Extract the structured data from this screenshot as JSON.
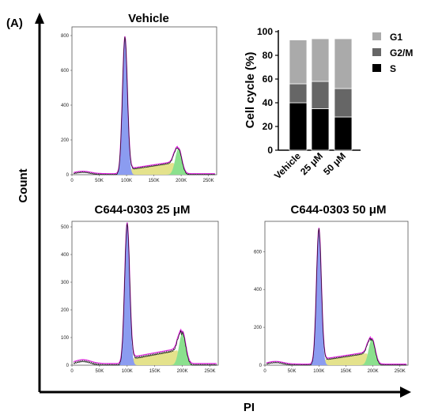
{
  "figure": {
    "panel_label": "(A)",
    "x_axis_label": "PI",
    "y_axis_label": "Count"
  },
  "chart_data": [
    {
      "type": "area",
      "title": "Vehicle",
      "x_ticks": [
        "0",
        "50K",
        "100K",
        "150K",
        "200K",
        "250K"
      ],
      "y_ticks": [
        "0",
        "200",
        "400",
        "600",
        "800"
      ],
      "xlim": [
        0,
        265000
      ],
      "ylim": [
        0,
        850
      ],
      "g1_peak": {
        "x": 97000,
        "count": 790
      },
      "g2m_peak": {
        "x": 195000,
        "count": 190
      }
    },
    {
      "type": "bar",
      "stacked": true,
      "ylabel": "Cell cycle (%)",
      "ylim": [
        0,
        100
      ],
      "y_ticks": [
        "0",
        "20",
        "40",
        "60",
        "80",
        "100"
      ],
      "categories": [
        "Vehicle",
        "25 μM",
        "50 μM"
      ],
      "series": [
        {
          "name": "S",
          "values": [
            40,
            35,
            28
          ],
          "color": "#000000"
        },
        {
          "name": "G2/M",
          "values": [
            16,
            23,
            24
          ],
          "color": "#666666"
        },
        {
          "name": "G1",
          "values": [
            37,
            36,
            42
          ],
          "color": "#aaaaaa"
        }
      ],
      "legend_order": [
        "G1",
        "G2/M",
        "S"
      ],
      "legend": "right"
    },
    {
      "type": "area",
      "title": "C644-0303 25 μM",
      "x_ticks": [
        "0",
        "50K",
        "100K",
        "150K",
        "200K",
        "250K"
      ],
      "y_ticks": [
        "0",
        "100",
        "200",
        "300",
        "400",
        "500"
      ],
      "xlim": [
        0,
        265000
      ],
      "ylim": [
        0,
        520
      ],
      "g1_peak": {
        "x": 100000,
        "count": 510
      },
      "g2m_peak": {
        "x": 200000,
        "count": 150
      }
    },
    {
      "type": "area",
      "title": "C644-0303 50 μM",
      "x_ticks": [
        "0",
        "50K",
        "100K",
        "150K",
        "200K",
        "250K"
      ],
      "y_ticks": [
        "0",
        "200",
        "400",
        "600"
      ],
      "xlim": [
        0,
        265000
      ],
      "ylim": [
        0,
        760
      ],
      "g1_peak": {
        "x": 100000,
        "count": 720
      },
      "g2m_peak": {
        "x": 198000,
        "count": 175
      }
    }
  ]
}
